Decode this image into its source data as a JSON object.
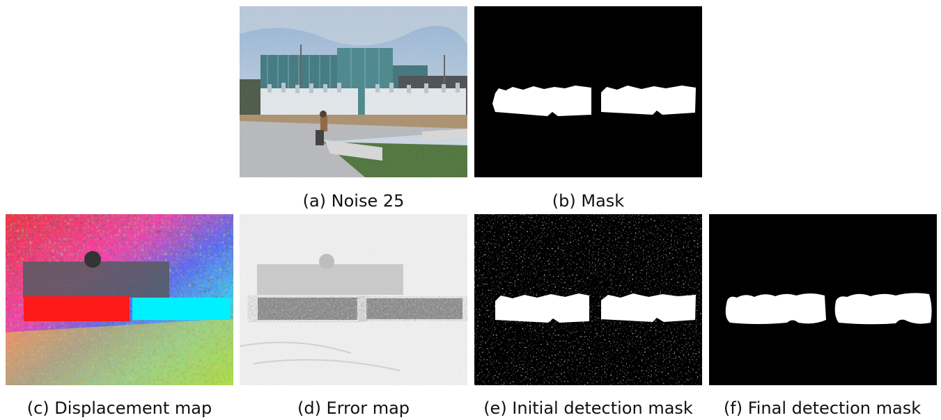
{
  "figure": {
    "panels": [
      {
        "id": "a",
        "caption": "(a) Noise 25"
      },
      {
        "id": "b",
        "caption": "(b) Mask"
      },
      {
        "id": "c",
        "caption": "(c) Displacement map"
      },
      {
        "id": "d",
        "caption": "(d) Error map"
      },
      {
        "id": "e",
        "caption": "(e) Initial detection mask"
      },
      {
        "id": "f",
        "caption": "(f) Final detection mask"
      }
    ]
  }
}
